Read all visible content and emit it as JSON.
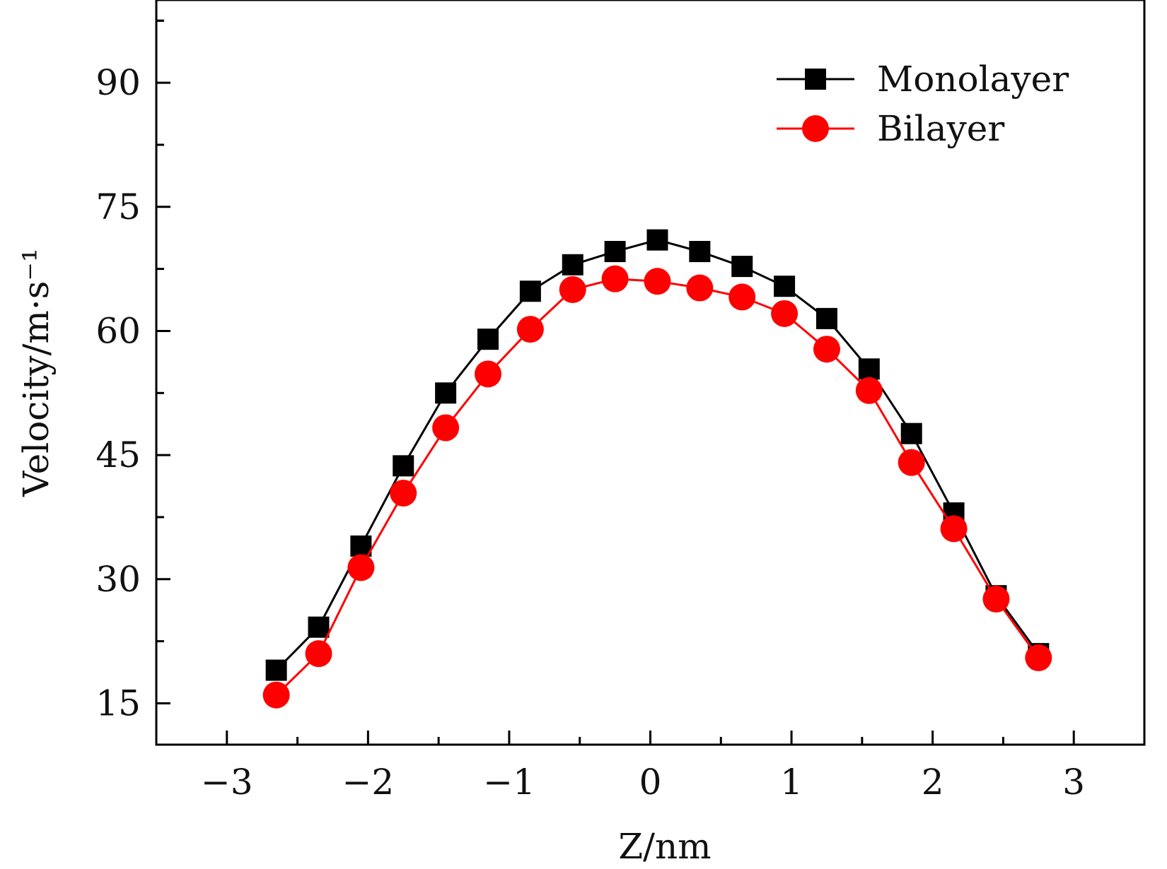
{
  "chart_data": {
    "type": "line",
    "xlabel": "Z/nm",
    "ylabel": "Velocity/m·s⁻¹",
    "xlim": [
      -3.5,
      3.5
    ],
    "ylim": [
      10,
      100
    ],
    "x_ticks": [
      -3,
      -2,
      -1,
      0,
      1,
      2,
      3
    ],
    "x_tick_labels": [
      "−3",
      "−2",
      "−1",
      "0",
      "1",
      "2",
      "3"
    ],
    "y_ticks": [
      15,
      30,
      45,
      60,
      75,
      90
    ],
    "y_tick_labels": [
      "15",
      "30",
      "45",
      "60",
      "75",
      "90"
    ],
    "grid": false,
    "legend_position": "top-right",
    "series": [
      {
        "name": "Monolayer",
        "color": "#000000",
        "marker": "square",
        "x": [
          -2.65,
          -2.35,
          -2.05,
          -1.75,
          -1.45,
          -1.15,
          -0.85,
          -0.55,
          -0.25,
          0.05,
          0.35,
          0.65,
          0.95,
          1.25,
          1.55,
          1.85,
          2.15,
          2.45,
          2.75
        ],
        "y": [
          19.0,
          24.2,
          34.0,
          43.7,
          52.5,
          59.0,
          64.8,
          68.0,
          69.6,
          71.0,
          69.6,
          67.8,
          65.4,
          61.5,
          55.4,
          47.6,
          38.0,
          28.0,
          21.0
        ]
      },
      {
        "name": "Bilayer",
        "color": "#ff0000",
        "marker": "circle",
        "x": [
          -2.65,
          -2.35,
          -2.05,
          -1.75,
          -1.45,
          -1.15,
          -0.85,
          -0.55,
          -0.25,
          0.05,
          0.35,
          0.65,
          0.95,
          1.25,
          1.55,
          1.85,
          2.15,
          2.45,
          2.75
        ],
        "y": [
          16.0,
          21.0,
          31.4,
          40.4,
          48.3,
          54.8,
          60.2,
          65.0,
          66.3,
          66.0,
          65.2,
          64.1,
          62.1,
          57.8,
          52.8,
          44.1,
          36.1,
          27.6,
          20.5
        ]
      }
    ]
  }
}
